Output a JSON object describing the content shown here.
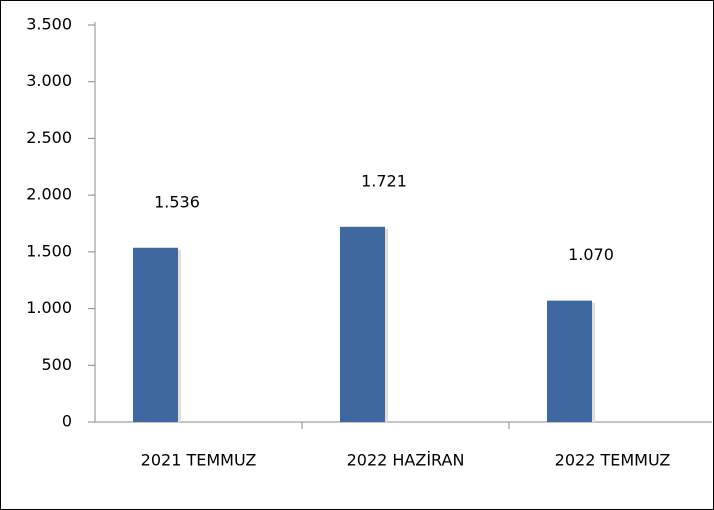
{
  "chart_data": {
    "type": "bar",
    "categories": [
      "2021 TEMMUZ",
      "2022 HAZİRAN",
      "2022 TEMMUZ"
    ],
    "values": [
      1536,
      1721,
      1070
    ],
    "value_labels": [
      "1.536",
      "1.721",
      "1.070"
    ],
    "color": "#3f68a0",
    "ylim": [
      0,
      3500
    ],
    "yticks": [
      0,
      500,
      {
        "value": 1000,
        "label": "1.000"
      },
      {
        "value": 1500,
        "label": "1.500"
      },
      {
        "value": 2000,
        "label": "2.000"
      },
      {
        "value": 2500,
        "label": "2.500"
      },
      {
        "value": 3000,
        "label": "3.000"
      },
      {
        "value": 3500,
        "label": "3.500"
      }
    ],
    "grid": false
  }
}
